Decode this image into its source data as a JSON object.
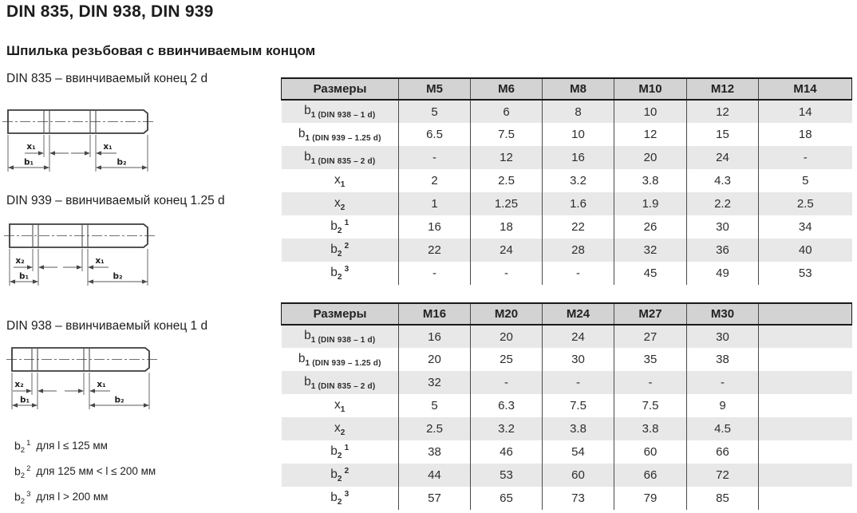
{
  "page": {
    "title": "DIN 835, DIN 938, DIN 939",
    "subtitle": "Шпилька резьбовая с ввинчиваемым концом"
  },
  "diagrams": [
    {
      "label": "DIN 835 – ввинчиваемый конец 2 d",
      "dims": {
        "left_x": "x₁",
        "left_b": "b₁",
        "right_x": "x₁",
        "right_b": "b₂"
      }
    },
    {
      "label": "DIN 939 – ввинчиваемый конец 1.25 d",
      "dims": {
        "left_x": "x₂",
        "left_b": "b₁",
        "right_x": "x₁",
        "right_b": "b₂"
      }
    },
    {
      "label": "DIN 938 – ввинчиваемый конец 1 d",
      "dims": {
        "left_x": "x₂",
        "left_b": "b₁",
        "right_x": "x₁",
        "right_b": "b₂"
      }
    }
  ],
  "footnotes": [
    {
      "base": "b",
      "sub": "2",
      "sup": "1",
      "text": "для l ≤ 125 мм"
    },
    {
      "base": "b",
      "sub": "2",
      "sup": "2",
      "text": "для 125 мм < l ≤ 200 мм"
    },
    {
      "base": "b",
      "sub": "2",
      "sup": "3",
      "text": "для l > 200 мм"
    }
  ],
  "tables": [
    {
      "columns": [
        "Размеры",
        "M5",
        "M6",
        "M8",
        "M10",
        "M12",
        "M14"
      ],
      "rows": [
        {
          "label": {
            "base": "b",
            "sub": "1 (DIN 938 – 1 d)",
            "sup": ""
          },
          "values": [
            "5",
            "6",
            "8",
            "10",
            "12",
            "14"
          ]
        },
        {
          "label": {
            "base": "b",
            "sub": "1 (DIN 939 – 1.25 d)",
            "sup": ""
          },
          "values": [
            "6.5",
            "7.5",
            "10",
            "12",
            "15",
            "18"
          ]
        },
        {
          "label": {
            "base": "b",
            "sub": "1 (DIN 835 – 2 d)",
            "sup": ""
          },
          "values": [
            "-",
            "12",
            "16",
            "20",
            "24",
            "-"
          ]
        },
        {
          "label": {
            "base": "x",
            "sub": "1",
            "sup": ""
          },
          "values": [
            "2",
            "2.5",
            "3.2",
            "3.8",
            "4.3",
            "5"
          ]
        },
        {
          "label": {
            "base": "x",
            "sub": "2",
            "sup": ""
          },
          "values": [
            "1",
            "1.25",
            "1.6",
            "1.9",
            "2.2",
            "2.5"
          ]
        },
        {
          "label": {
            "base": "b",
            "sub": "2",
            "sup": "1"
          },
          "values": [
            "16",
            "18",
            "22",
            "26",
            "30",
            "34"
          ]
        },
        {
          "label": {
            "base": "b",
            "sub": "2",
            "sup": "2"
          },
          "values": [
            "22",
            "24",
            "28",
            "32",
            "36",
            "40"
          ]
        },
        {
          "label": {
            "base": "b",
            "sub": "2",
            "sup": "3"
          },
          "values": [
            "-",
            "-",
            "-",
            "45",
            "49",
            "53"
          ]
        }
      ]
    },
    {
      "columns": [
        "Размеры",
        "M16",
        "M20",
        "M24",
        "M27",
        "M30",
        ""
      ],
      "rows": [
        {
          "label": {
            "base": "b",
            "sub": "1 (DIN 938 – 1 d)",
            "sup": ""
          },
          "values": [
            "16",
            "20",
            "24",
            "27",
            "30",
            ""
          ]
        },
        {
          "label": {
            "base": "b",
            "sub": "1 (DIN 939 – 1.25 d)",
            "sup": ""
          },
          "values": [
            "20",
            "25",
            "30",
            "35",
            "38",
            ""
          ]
        },
        {
          "label": {
            "base": "b",
            "sub": "1 (DIN 835 – 2 d)",
            "sup": ""
          },
          "values": [
            "32",
            "-",
            "-",
            "-",
            "-",
            ""
          ]
        },
        {
          "label": {
            "base": "x",
            "sub": "1",
            "sup": ""
          },
          "values": [
            "5",
            "6.3",
            "7.5",
            "7.5",
            "9",
            ""
          ]
        },
        {
          "label": {
            "base": "x",
            "sub": "2",
            "sup": ""
          },
          "values": [
            "2.5",
            "3.2",
            "3.8",
            "3.8",
            "4.5",
            ""
          ]
        },
        {
          "label": {
            "base": "b",
            "sub": "2",
            "sup": "1"
          },
          "values": [
            "38",
            "46",
            "54",
            "60",
            "66",
            ""
          ]
        },
        {
          "label": {
            "base": "b",
            "sub": "2",
            "sup": "2"
          },
          "values": [
            "44",
            "53",
            "60",
            "66",
            "72",
            ""
          ]
        },
        {
          "label": {
            "base": "b",
            "sub": "2",
            "sup": "3"
          },
          "values": [
            "57",
            "65",
            "73",
            "79",
            "85",
            ""
          ]
        }
      ]
    }
  ],
  "colors": {
    "header_bg": "#d3d3d3",
    "row_shaded_bg": "#e8e8e8",
    "row_plain_bg": "#ffffff",
    "border_dark": "#1a1a1a",
    "column_separator": "#4a4a4a",
    "drawing_line": "#3c3c3c",
    "text": "#2d2d2d"
  }
}
